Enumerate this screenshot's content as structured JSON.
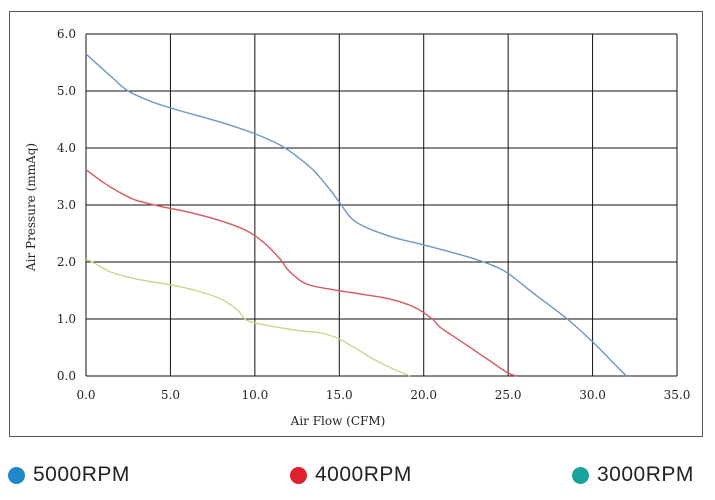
{
  "chart_data": {
    "type": "line",
    "xlabel": "Air Flow (CFM)",
    "ylabel": "Air Pressure (mmAq)",
    "xlim": [
      0,
      35
    ],
    "ylim": [
      0,
      6
    ],
    "xticks": [
      "0.0",
      "5.0",
      "10.0",
      "15.0",
      "20.0",
      "25.0",
      "30.0",
      "35.0"
    ],
    "yticks": [
      "0.0",
      "1.0",
      "2.0",
      "3.0",
      "4.0",
      "5.0",
      "6.0"
    ],
    "grid": true,
    "series": [
      {
        "name": "5000RPM",
        "color": "#6e97c6",
        "x": [
          0,
          1.5,
          2.5,
          4,
          5.5,
          8,
          10,
          11.5,
          12.5,
          13.5,
          14.5,
          15,
          16,
          18,
          20,
          22.5,
          24,
          25,
          26.5,
          28.5,
          30,
          31,
          32
        ],
        "y": [
          5.65,
          5.25,
          5.0,
          4.8,
          4.66,
          4.45,
          4.25,
          4.05,
          3.85,
          3.6,
          3.25,
          3.05,
          2.7,
          2.45,
          2.3,
          2.1,
          1.95,
          1.8,
          1.45,
          1.0,
          0.6,
          0.3,
          0.0
        ]
      },
      {
        "name": "4000RPM",
        "color": "#d9575f",
        "x": [
          0,
          1,
          2,
          3,
          4.5,
          6,
          8,
          9.5,
          10.5,
          11.5,
          12,
          13,
          14.5,
          16,
          18,
          19.5,
          20.5,
          21,
          22,
          23,
          24,
          25,
          25.5
        ],
        "y": [
          3.62,
          3.4,
          3.22,
          3.08,
          2.97,
          2.88,
          2.72,
          2.55,
          2.35,
          2.05,
          1.85,
          1.62,
          1.52,
          1.45,
          1.35,
          1.2,
          1.0,
          0.85,
          0.65,
          0.45,
          0.25,
          0.05,
          0.0
        ]
      },
      {
        "name": "3000RPM",
        "color": "#c6d88c",
        "x": [
          0,
          0.5,
          1.5,
          3,
          5,
          6.5,
          8,
          9,
          9.5,
          10.5,
          12.5,
          14,
          15,
          16,
          17,
          18,
          19.2
        ],
        "y": [
          2.05,
          1.98,
          1.82,
          1.7,
          1.6,
          1.5,
          1.35,
          1.15,
          0.98,
          0.9,
          0.8,
          0.75,
          0.65,
          0.48,
          0.3,
          0.15,
          0.0
        ]
      }
    ]
  },
  "legend": [
    {
      "label": "5000RPM",
      "color": "#1e88c8"
    },
    {
      "label": "4000RPM",
      "color": "#e0202a"
    },
    {
      "label": "3000RPM",
      "color": "#1aa39a"
    }
  ]
}
